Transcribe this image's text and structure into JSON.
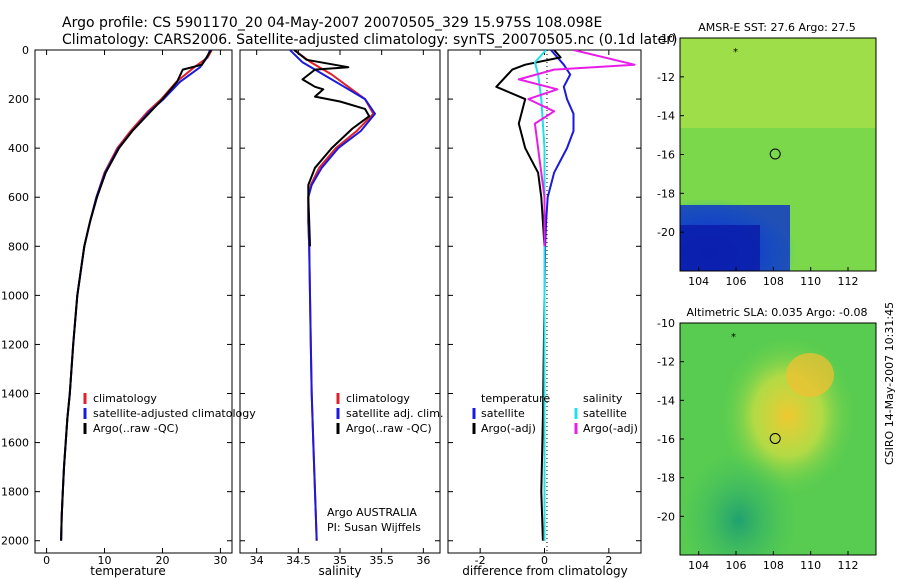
{
  "figure": {
    "title_line1": "Argo profile: CS 5901170_20 04-May-2007 20070505_329 15.975S 108.098E",
    "title_line2": "Climatology: CARS2006. Satellite-adjusted climatology: synTS_20070505.nc (0.1d later)",
    "side_stamp": "CSIRO 14-May-2007 10:31:45"
  },
  "chart_data": [
    {
      "type": "line",
      "xlabel": "temperature",
      "xlim": [
        -2,
        32
      ],
      "ylim": [
        2050,
        0
      ],
      "xticks": [
        "0",
        "10",
        "20",
        "30"
      ],
      "yticks": [
        "0",
        "200",
        "400",
        "600",
        "800",
        "1000",
        "1200",
        "1400",
        "1600",
        "1800",
        "2000"
      ],
      "legend": [
        "climatology",
        "satellite-adjusted climatology",
        "Argo(..raw -QC)"
      ],
      "series": [
        {
          "name": "climatology",
          "color": "#e0202a",
          "x": [
            28.5,
            27.8,
            25.5,
            22.4,
            19.8,
            17.5,
            14.5,
            12.2,
            10.0,
            8.6,
            7.5,
            6.5,
            5.9,
            5.3,
            4.6,
            4.0,
            3.6,
            3.3,
            3.0,
            2.8,
            2.6,
            2.5
          ],
          "y": [
            0,
            30,
            70,
            130,
            200,
            250,
            330,
            400,
            500,
            600,
            700,
            800,
            900,
            1000,
            1200,
            1400,
            1500,
            1600,
            1700,
            1800,
            1900,
            2000
          ]
        },
        {
          "name": "satellite-adjusted climatology",
          "color": "#1a1adc",
          "x": [
            28.2,
            27.7,
            26.5,
            23.0,
            20.2,
            17.8,
            14.8,
            12.4,
            10.1,
            8.6,
            7.5,
            6.5,
            5.9,
            5.3,
            4.6,
            4.0,
            3.6,
            3.3,
            3.0,
            2.8,
            2.6,
            2.5
          ],
          "y": [
            0,
            30,
            70,
            130,
            200,
            250,
            330,
            400,
            500,
            600,
            700,
            800,
            900,
            1000,
            1200,
            1400,
            1500,
            1600,
            1700,
            1800,
            1900,
            2000
          ]
        },
        {
          "name": "Argo(..raw -QC)",
          "color": "#000000",
          "x": [
            28.4,
            27.6,
            26.8,
            23.5,
            22.5,
            20.0,
            18.0,
            14.8,
            12.5,
            10.2,
            8.7,
            7.5,
            6.5,
            5.9,
            5.3,
            4.6,
            4.0,
            3.6,
            3.3,
            3.0,
            2.8,
            2.6,
            2.5
          ],
          "y": [
            0,
            30,
            60,
            80,
            130,
            200,
            250,
            330,
            400,
            500,
            600,
            700,
            800,
            900,
            1000,
            1200,
            1400,
            1500,
            1600,
            1700,
            1800,
            1900,
            2000
          ]
        }
      ]
    },
    {
      "type": "line",
      "xlabel": "salinity",
      "xlim": [
        33.8,
        36.2
      ],
      "ylim": [
        2050,
        0
      ],
      "xticks": [
        "34",
        "34.5",
        "35",
        "35.5",
        "36"
      ],
      "legend": [
        "climatology",
        "satellite adj. clim.",
        "Argo(..raw -QC)"
      ],
      "annotation_line1": "Argo AUSTRALIA",
      "annotation_line2": "PI: Susan Wijffels",
      "series": [
        {
          "name": "climatology",
          "color": "#e0202a",
          "x": [
            34.45,
            34.65,
            34.9,
            35.1,
            35.3,
            35.4,
            35.2,
            34.95,
            34.75,
            34.65,
            34.62,
            34.62,
            34.63,
            34.64,
            34.65,
            34.66,
            34.68,
            34.7,
            34.72
          ],
          "y": [
            0,
            50,
            100,
            150,
            200,
            260,
            330,
            400,
            480,
            550,
            600,
            700,
            800,
            1000,
            1200,
            1400,
            1600,
            1800,
            2000
          ]
        },
        {
          "name": "satellite adj. clim.",
          "color": "#1a1adc",
          "x": [
            34.4,
            34.55,
            34.8,
            35.05,
            35.3,
            35.42,
            35.25,
            34.98,
            34.78,
            34.66,
            34.62,
            34.62,
            34.63,
            34.64,
            34.65,
            34.66,
            34.68,
            34.7,
            34.72
          ],
          "y": [
            0,
            50,
            100,
            150,
            200,
            260,
            330,
            400,
            480,
            550,
            600,
            700,
            800,
            1000,
            1200,
            1400,
            1600,
            1800,
            2000
          ]
        },
        {
          "name": "Argo(..raw -QC)",
          "color": "#000000",
          "x": [
            34.45,
            34.6,
            35.1,
            34.7,
            34.55,
            34.7,
            34.8,
            34.7,
            35.0,
            35.3,
            35.35,
            35.15,
            34.9,
            34.7,
            34.62,
            34.62,
            34.63,
            34.64
          ],
          "y": [
            0,
            40,
            70,
            80,
            120,
            150,
            160,
            190,
            210,
            240,
            270,
            320,
            400,
            480,
            550,
            600,
            700,
            800
          ]
        }
      ]
    },
    {
      "type": "line",
      "xlabel": "difference from climatology",
      "xlim": [
        -3,
        3
      ],
      "ylim": [
        2050,
        0
      ],
      "xticks": [
        "-2",
        "0",
        "2"
      ],
      "legend_temperature": {
        "header": "temperature",
        "items": [
          "satellite",
          "Argo(-adj)"
        ]
      },
      "legend_salinity": {
        "header": "salinity",
        "items": [
          "satellite",
          "Argo(-adj)"
        ]
      },
      "series": [
        {
          "name": "temperature satellite",
          "color": "#1a1adc",
          "x": [
            0.2,
            0.6,
            0.8,
            0.6,
            0.7,
            0.9,
            0.9,
            0.7,
            0.3,
            0.1,
            0.05,
            0.02,
            0.0,
            0.0,
            0.0
          ],
          "y": [
            0,
            60,
            100,
            150,
            200,
            260,
            330,
            400,
            500,
            600,
            700,
            800,
            1000,
            1500,
            2000
          ]
        },
        {
          "name": "temperature Argo(-adj)",
          "color": "#000000",
          "x": [
            0.3,
            0.5,
            -0.6,
            -1.0,
            -1.5,
            -0.6,
            -0.8,
            -0.6,
            -0.4,
            -0.2,
            -0.1,
            0.0,
            0.0,
            -0.05,
            -0.1,
            -0.05
          ],
          "y": [
            0,
            30,
            60,
            80,
            150,
            200,
            300,
            400,
            450,
            500,
            600,
            800,
            1000,
            1500,
            1800,
            2000
          ]
        },
        {
          "name": "salinity satellite",
          "color": "#20e0e8",
          "x": [
            0.05,
            -0.3,
            -0.2,
            -0.1,
            -0.05,
            0.0,
            0.0,
            0.0,
            0.0
          ],
          "y": [
            0,
            50,
            100,
            200,
            300,
            400,
            600,
            1000,
            2000
          ]
        },
        {
          "name": "salinity Argo(-adj)",
          "color": "#e81ee8",
          "x": [
            0.9,
            2.8,
            0.3,
            -0.8,
            0.4,
            -0.5,
            0.3,
            -0.3,
            -0.2,
            -0.1,
            0.0,
            0.0
          ],
          "y": [
            0,
            60,
            80,
            120,
            160,
            200,
            250,
            300,
            400,
            500,
            600,
            800
          ]
        }
      ]
    },
    {
      "type": "heatmap",
      "title": "AMSR-E SST: 27.6 Argo: 27.5",
      "xticks": [
        "104",
        "106",
        "108",
        "110",
        "112"
      ],
      "yticks": [
        "-10",
        "-12",
        "-14",
        "-16",
        "-18",
        "-20"
      ],
      "xlim": [
        103,
        113.5
      ],
      "ylim": [
        -22,
        -10
      ],
      "argo_position": [
        108.098,
        -15.975
      ]
    },
    {
      "type": "heatmap",
      "title": "Altimetric SLA: 0.035 Argo: -0.08",
      "xticks": [
        "104",
        "106",
        "108",
        "110",
        "112"
      ],
      "yticks": [
        "-10",
        "-12",
        "-14",
        "-16",
        "-18",
        "-20"
      ],
      "xlim": [
        103,
        113.5
      ],
      "ylim": [
        -22,
        -10
      ],
      "argo_position": [
        108.098,
        -15.975
      ]
    }
  ]
}
